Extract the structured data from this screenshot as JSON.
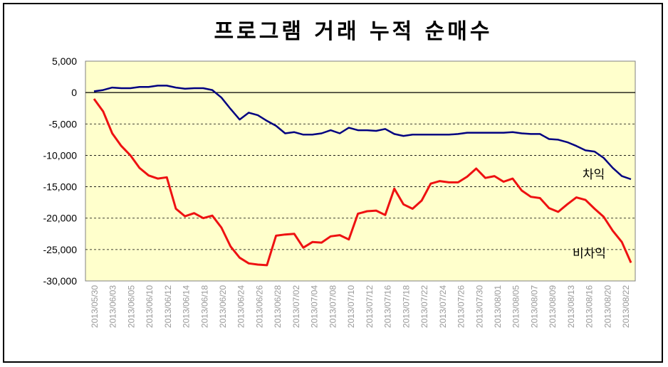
{
  "chart_data": {
    "type": "line",
    "title": "프로그램 거래 누적 순매수",
    "xlabel": "",
    "ylabel": "",
    "ylim": [
      -30000,
      5000
    ],
    "yticks": [
      5000,
      0,
      -5000,
      -10000,
      -15000,
      -20000,
      -25000,
      -30000
    ],
    "ytick_labels": [
      "5,000",
      "0",
      "-5,000",
      "-10,000",
      "-15,000",
      "-20,000",
      "-25,000",
      "-30,000"
    ],
    "xtick_labels": [
      "2013/05/30",
      "2013/06/03",
      "2013/06/05",
      "2013/06/10",
      "2013/06/12",
      "2013/06/14",
      "2013/06/18",
      "2013/06/20",
      "2013/06/24",
      "2013/06/26",
      "2013/06/28",
      "2013/07/02",
      "2013/07/04",
      "2013/07/08",
      "2013/07/10",
      "2013/07/12",
      "2013/07/16",
      "2013/07/18",
      "2013/07/22",
      "2013/07/24",
      "2013/07/26",
      "2013/07/30",
      "2013/08/01",
      "2013/08/05",
      "2013/08/07",
      "2013/08/09",
      "2013/08/13",
      "2013/08/16",
      "2013/08/20",
      "2013/08/22"
    ],
    "grid": true,
    "plot_background": "#ffffcc",
    "series": [
      {
        "name": "차익",
        "color": "#000080",
        "values": [
          200,
          400,
          800,
          700,
          700,
          900,
          900,
          1100,
          1100,
          800,
          600,
          700,
          700,
          400,
          -800,
          -2600,
          -4300,
          -3200,
          -3600,
          -4500,
          -5300,
          -6500,
          -6300,
          -6700,
          -6700,
          -6500,
          -6000,
          -6500,
          -5600,
          -6000,
          -6000,
          -6100,
          -5800,
          -6600,
          -6900,
          -6700,
          -6700,
          -6700,
          -6700,
          -6700,
          -6600,
          -6400,
          -6400,
          -6400,
          -6400,
          -6400,
          -6300,
          -6500,
          -6600,
          -6600,
          -7400,
          -7500,
          -7900,
          -8500,
          -9200,
          -9400,
          -10400,
          -12000,
          -13300,
          -13800
        ]
      },
      {
        "name": "비차익",
        "color": "#ee1111",
        "values": [
          -1000,
          -3000,
          -6500,
          -8500,
          -10000,
          -12000,
          -13200,
          -13700,
          -13500,
          -18500,
          -19700,
          -19200,
          -20000,
          -19600,
          -21500,
          -24500,
          -26300,
          -27200,
          -27400,
          -27500,
          -22800,
          -22600,
          -22500,
          -24700,
          -23800,
          -23900,
          -22900,
          -22700,
          -23400,
          -19300,
          -18900,
          -18800,
          -19500,
          -15300,
          -17800,
          -18500,
          -17200,
          -14500,
          -14100,
          -14300,
          -14300,
          -13400,
          -12100,
          -13600,
          -13300,
          -14200,
          -13700,
          -15600,
          -16600,
          -16800,
          -18400,
          -19000,
          -17800,
          -16700,
          -17100,
          -18500,
          -19800,
          -22000,
          -23800,
          -27100
        ]
      }
    ]
  },
  "annotations": {
    "arb_label": "차익",
    "nonarb_label": "비차익"
  }
}
